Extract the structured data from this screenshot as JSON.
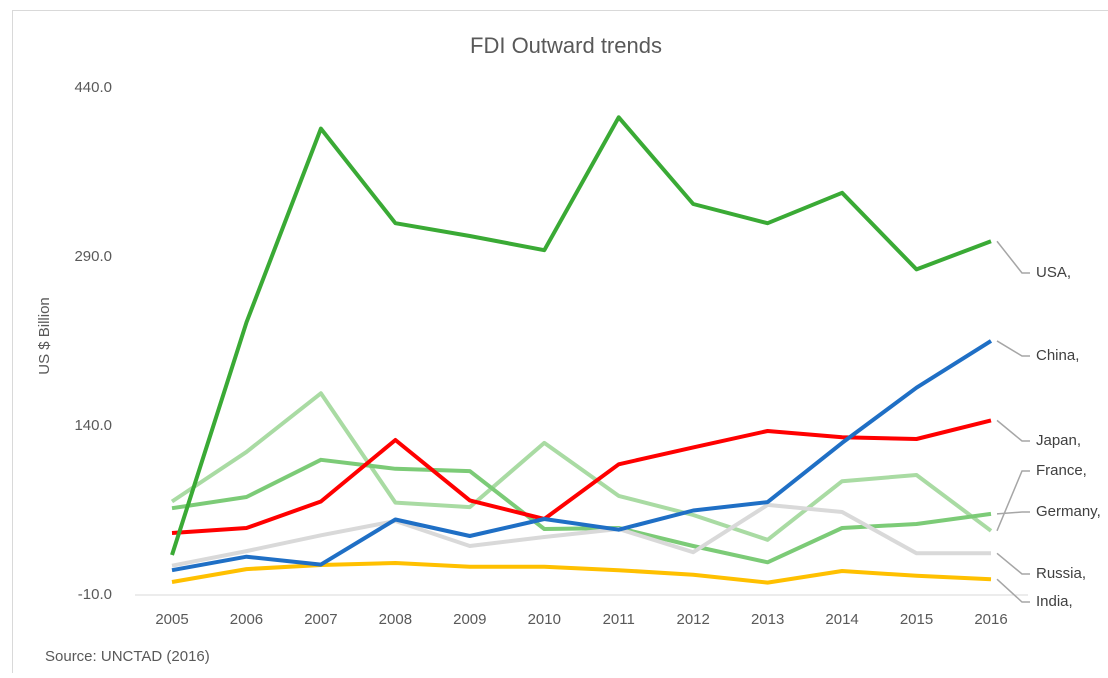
{
  "chart_data": {
    "type": "line",
    "title": "FDI Outward trends",
    "y_label": "US $ Billion",
    "source": "Source: UNCTAD (2016)",
    "categories": [
      "2005",
      "2006",
      "2007",
      "2008",
      "2009",
      "2010",
      "2011",
      "2012",
      "2013",
      "2014",
      "2015",
      "2016"
    ],
    "ylim": [
      -10,
      440
    ],
    "yticks": [
      {
        "value": -10,
        "label": "-10.0"
      },
      {
        "value": 140,
        "label": "140.0"
      },
      {
        "value": 290,
        "label": "290.0"
      },
      {
        "value": 440,
        "label": "440.0"
      }
    ],
    "grid": false,
    "series": [
      {
        "name": "France,",
        "color": "#a9dba3",
        "values": [
          73,
          117,
          169,
          72,
          68,
          125,
          78,
          61,
          39,
          91,
          96.5,
          47
        ]
      },
      {
        "name": "Germany,",
        "color": "#7ccb77",
        "values": [
          67,
          77,
          110,
          102,
          100,
          48.6,
          49.5,
          33.5,
          19,
          49.5,
          53,
          62
        ]
      },
      {
        "name": "Russia,",
        "color": "#d9d9d9",
        "values": [
          16,
          29,
          43,
          55.7,
          33.5,
          41.5,
          48.6,
          28,
          70,
          63.7,
          27,
          27
        ]
      },
      {
        "name": "India,",
        "color": "#ffc000",
        "values": [
          1.5,
          13,
          16.6,
          18.4,
          15,
          15,
          12,
          8,
          1,
          11.3,
          7,
          4
        ]
      },
      {
        "name": "Japan,",
        "color": "#ff0000",
        "values": [
          45,
          49.5,
          73,
          127.6,
          74,
          57.5,
          106,
          121,
          135.6,
          130,
          128.5,
          145
        ]
      },
      {
        "name": "China,",
        "color": "#1f6fc5",
        "values": [
          12,
          24,
          17,
          57,
          42.4,
          57.5,
          48,
          65,
          72.5,
          125,
          174,
          215.5
        ]
      },
      {
        "name": "USA,",
        "color": "#3aaa35",
        "values": [
          25.5,
          232,
          404,
          320,
          308.6,
          296,
          414,
          337,
          320,
          347,
          279,
          304
        ]
      }
    ]
  }
}
